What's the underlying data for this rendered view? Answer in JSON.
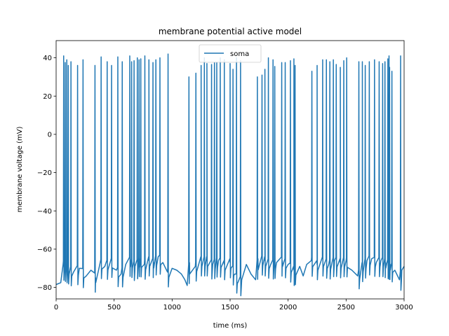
{
  "chart_data": {
    "type": "line",
    "title": "membrane potential active model",
    "xlabel": "time (ms)",
    "ylabel": "membrane voltage (mV)",
    "xlim": [
      0,
      3000
    ],
    "ylim": [
      -86,
      49
    ],
    "xticks": [
      0,
      500,
      1000,
      1500,
      2000,
      2500,
      3000
    ],
    "yticks": [
      -80,
      -60,
      -40,
      -20,
      0,
      20,
      40
    ],
    "grid": false,
    "legend_position": "top-center",
    "series": [
      {
        "name": "soma",
        "color": "#1f77b4",
        "baseline_points": [
          [
            0,
            -78.5
          ],
          [
            40,
            -77.5
          ],
          [
            60,
            -68
          ],
          [
            100,
            -70
          ],
          [
            150,
            -72
          ],
          [
            200,
            -70
          ],
          [
            260,
            -74
          ],
          [
            300,
            -71
          ],
          [
            340,
            -75
          ],
          [
            380,
            -67
          ],
          [
            420,
            -69
          ],
          [
            470,
            -66
          ],
          [
            520,
            -71
          ],
          [
            560,
            -73
          ],
          [
            600,
            -68
          ],
          [
            640,
            -66
          ],
          [
            680,
            -69
          ],
          [
            720,
            -66
          ],
          [
            760,
            -68
          ],
          [
            800,
            -66
          ],
          [
            840,
            -67
          ],
          [
            880,
            -64
          ],
          [
            920,
            -67
          ],
          [
            960,
            -72
          ],
          [
            1000,
            -70
          ],
          [
            1040,
            -71
          ],
          [
            1080,
            -73
          ],
          [
            1110,
            -76
          ],
          [
            1130,
            -79
          ],
          [
            1150,
            -67
          ],
          [
            1200,
            -69
          ],
          [
            1250,
            -66
          ],
          [
            1300,
            -66
          ],
          [
            1350,
            -68
          ],
          [
            1400,
            -66
          ],
          [
            1450,
            -68
          ],
          [
            1500,
            -67
          ],
          [
            1540,
            -73
          ],
          [
            1570,
            -77
          ],
          [
            1600,
            -76
          ],
          [
            1640,
            -68
          ],
          [
            1680,
            -73
          ],
          [
            1720,
            -76
          ],
          [
            1740,
            -65
          ],
          [
            1800,
            -66
          ],
          [
            1850,
            -68
          ],
          [
            1900,
            -67
          ],
          [
            1950,
            -66
          ],
          [
            2000,
            -68
          ],
          [
            2050,
            -71
          ],
          [
            2100,
            -69
          ],
          [
            2130,
            -74
          ],
          [
            2160,
            -68
          ],
          [
            2200,
            -66
          ],
          [
            2250,
            -68
          ],
          [
            2300,
            -66
          ],
          [
            2350,
            -68
          ],
          [
            2400,
            -66
          ],
          [
            2450,
            -67
          ],
          [
            2500,
            -66
          ],
          [
            2550,
            -71
          ],
          [
            2600,
            -74
          ],
          [
            2640,
            -69
          ],
          [
            2680,
            -66
          ],
          [
            2720,
            -65
          ],
          [
            2760,
            -67
          ],
          [
            2800,
            -66
          ],
          [
            2840,
            -67
          ],
          [
            2880,
            -68
          ],
          [
            2920,
            -71
          ],
          [
            2960,
            -76
          ],
          [
            2980,
            -71
          ],
          [
            3000,
            -69
          ]
        ],
        "spike_times": [
          65,
          78,
          92,
          105,
          128,
          185,
          232,
          335,
          388,
          440,
          478,
          532,
          570,
          635,
          651,
          672,
          700,
          715,
          730,
          765,
          800,
          835,
          860,
          895,
          965,
          1145,
          1205,
          1250,
          1278,
          1300,
          1340,
          1365,
          1385,
          1415,
          1450,
          1500,
          1525,
          1555,
          1590,
          1735,
          1775,
          1800,
          1830,
          1870,
          1885,
          1945,
          1975,
          2020,
          2050,
          2060,
          2205,
          2250,
          2298,
          2330,
          2360,
          2390,
          2415,
          2450,
          2480,
          2505,
          2610,
          2640,
          2665,
          2700,
          2745,
          2785,
          2815,
          2835,
          2860,
          2870,
          2875,
          2895,
          2970
        ],
        "spike_peaks": [
          41,
          37.5,
          39,
          36,
          38,
          36,
          39,
          36,
          40.5,
          38,
          36,
          40.5,
          38,
          41,
          38,
          38.5,
          40,
          39,
          39.5,
          41,
          39,
          37.5,
          39,
          40,
          42,
          30,
          32,
          36,
          40,
          37,
          36.5,
          37.5,
          37.5,
          40,
          39,
          37,
          34,
          40,
          38.5,
          30,
          31,
          34,
          40,
          39,
          35.5,
          37.5,
          37.5,
          38.5,
          39.5,
          36,
          33,
          36,
          39,
          39,
          38,
          39,
          36.5,
          35,
          38.5,
          40,
          38,
          38,
          36,
          38,
          39,
          38,
          37,
          38,
          39.5,
          41,
          35,
          33,
          41
        ]
      }
    ]
  }
}
